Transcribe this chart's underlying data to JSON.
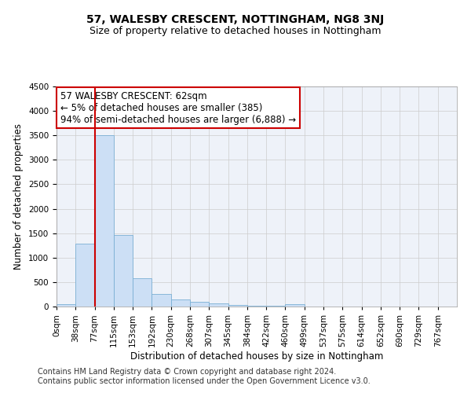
{
  "title": "57, WALESBY CRESCENT, NOTTINGHAM, NG8 3NJ",
  "subtitle": "Size of property relative to detached houses in Nottingham",
  "xlabel": "Distribution of detached houses by size in Nottingham",
  "ylabel": "Number of detached properties",
  "footer1": "Contains HM Land Registry data © Crown copyright and database right 2024.",
  "footer2": "Contains public sector information licensed under the Open Government Licence v3.0.",
  "bar_labels": [
    "0sqm",
    "38sqm",
    "77sqm",
    "115sqm",
    "153sqm",
    "192sqm",
    "230sqm",
    "268sqm",
    "307sqm",
    "345sqm",
    "384sqm",
    "422sqm",
    "460sqm",
    "499sqm",
    "537sqm",
    "575sqm",
    "614sqm",
    "652sqm",
    "690sqm",
    "729sqm",
    "767sqm"
  ],
  "bar_values": [
    50,
    1280,
    3500,
    1470,
    580,
    260,
    150,
    100,
    60,
    40,
    20,
    10,
    50,
    5,
    0,
    0,
    0,
    0,
    0,
    0,
    0
  ],
  "bar_color": "#ccdff5",
  "bar_edge_color": "#7aafd4",
  "bar_width": 1.0,
  "ylim": [
    0,
    4500
  ],
  "yticks": [
    0,
    500,
    1000,
    1500,
    2000,
    2500,
    3000,
    3500,
    4000,
    4500
  ],
  "vline_x": 2.0,
  "vline_color": "#cc0000",
  "annotation_line1": "57 WALESBY CRESCENT: 62sqm",
  "annotation_line2": "← 5% of detached houses are smaller (385)",
  "annotation_line3": "94% of semi-detached houses are larger (6,888) →",
  "annotation_box_color": "#cc0000",
  "grid_color": "#cccccc",
  "bg_color": "#eef2f9",
  "title_fontsize": 10,
  "subtitle_fontsize": 9,
  "axis_label_fontsize": 8.5,
  "tick_fontsize": 7.5,
  "annotation_fontsize": 8.5,
  "footer_fontsize": 7
}
